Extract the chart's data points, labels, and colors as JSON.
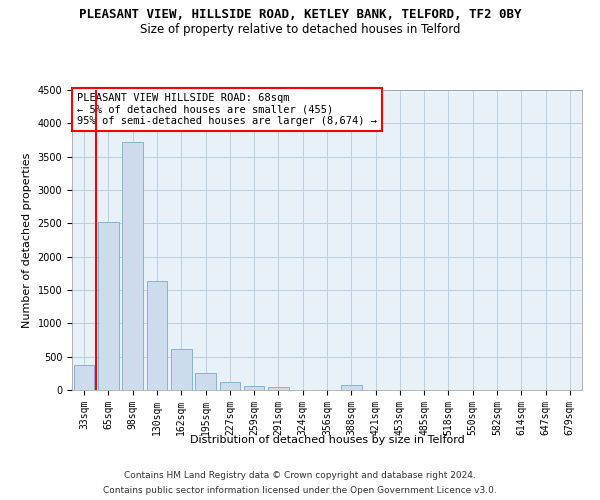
{
  "title": "PLEASANT VIEW, HILLSIDE ROAD, KETLEY BANK, TELFORD, TF2 0BY",
  "subtitle": "Size of property relative to detached houses in Telford",
  "xlabel": "Distribution of detached houses by size in Telford",
  "ylabel": "Number of detached properties",
  "categories": [
    "33sqm",
    "65sqm",
    "98sqm",
    "130sqm",
    "162sqm",
    "195sqm",
    "227sqm",
    "259sqm",
    "291sqm",
    "324sqm",
    "356sqm",
    "388sqm",
    "421sqm",
    "453sqm",
    "485sqm",
    "518sqm",
    "550sqm",
    "582sqm",
    "614sqm",
    "647sqm",
    "679sqm"
  ],
  "values": [
    380,
    2520,
    3720,
    1640,
    610,
    250,
    115,
    65,
    50,
    0,
    0,
    75,
    0,
    0,
    0,
    0,
    0,
    0,
    0,
    0,
    0
  ],
  "bar_color": "#ccdcec",
  "bar_edgecolor": "#7aaaca",
  "grid_color": "#b8cfe0",
  "vline_x": 0.5,
  "vline_color": "red",
  "annotation_text": "PLEASANT VIEW HILLSIDE ROAD: 68sqm\n← 5% of detached houses are smaller (455)\n95% of semi-detached houses are larger (8,674) →",
  "annotation_box_edgecolor": "red",
  "ylim": [
    0,
    4500
  ],
  "yticks": [
    0,
    500,
    1000,
    1500,
    2000,
    2500,
    3000,
    3500,
    4000,
    4500
  ],
  "footer_line1": "Contains HM Land Registry data © Crown copyright and database right 2024.",
  "footer_line2": "Contains public sector information licensed under the Open Government Licence v3.0.",
  "bg_color": "#e8f0f8",
  "title_fontsize": 9,
  "subtitle_fontsize": 8.5,
  "axis_label_fontsize": 8,
  "tick_fontsize": 7,
  "annotation_fontsize": 7.5,
  "footer_fontsize": 6.5
}
